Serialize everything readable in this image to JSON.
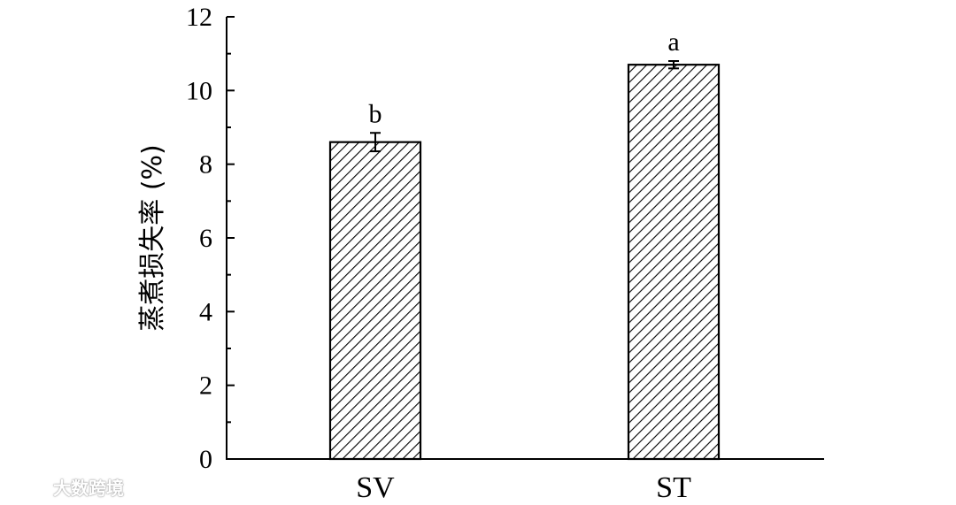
{
  "chart_data": {
    "type": "bar",
    "categories": [
      "SV",
      "ST"
    ],
    "values": [
      8.6,
      10.7
    ],
    "errors": [
      0.25,
      0.1
    ],
    "significance": [
      "b",
      "a"
    ],
    "title": "",
    "xlabel": "",
    "ylabel": "蒸煮损失率 (%)",
    "ylim": [
      0,
      12
    ],
    "yticks": [
      "0",
      "2",
      "4",
      "6",
      "8",
      "10",
      "12"
    ],
    "bar_fill": "hatched",
    "bar_color": "#000000",
    "background": "#ffffff"
  },
  "watermark": {
    "text": "大数跨境"
  }
}
